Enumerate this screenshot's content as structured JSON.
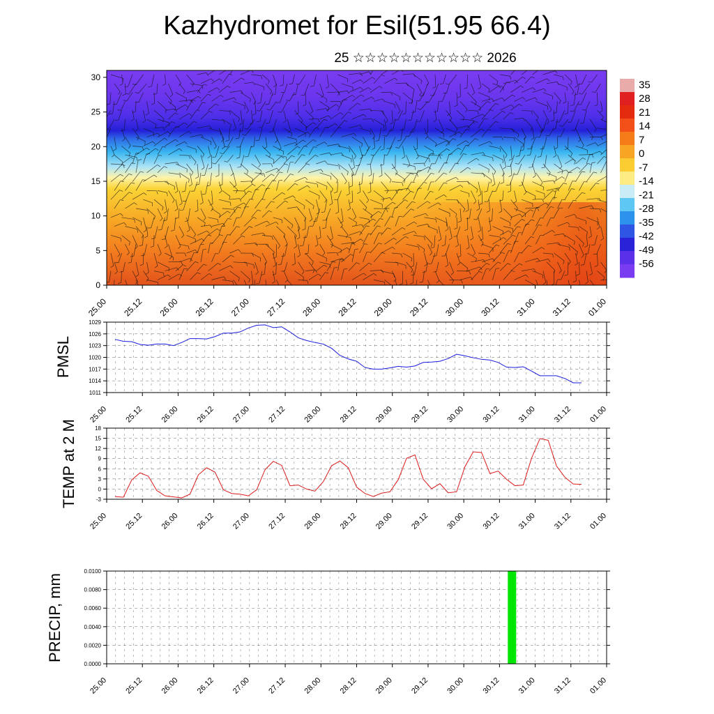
{
  "title": "Kazhydromet for Esil(51.95 66.4)",
  "subtitle": "25 ☆☆☆☆☆☆☆☆☆☆☆ 2026",
  "time_labels": [
    "25.00",
    "25.12",
    "26.00",
    "26.12",
    "27.00",
    "27.12",
    "28.00",
    "28.12",
    "29.00",
    "29.12",
    "30.00",
    "30.12",
    "31.00",
    "31.12",
    "01.00"
  ],
  "colors": {
    "pmsl_line": "#1a1adc",
    "temp_line": "#dc1a1a",
    "precip_bar": "#00e600"
  },
  "chart_data": [
    {
      "type": "heatmap",
      "name": "cross-section",
      "x_labels": [
        "25.00",
        "25.12",
        "26.00",
        "26.12",
        "27.00",
        "27.12",
        "28.00",
        "28.12",
        "29.00",
        "29.12",
        "30.00",
        "30.12",
        "31.00",
        "31.12",
        "01.00"
      ],
      "yticks": [
        0,
        5,
        10,
        15,
        20,
        25,
        30
      ],
      "ylim": [
        0,
        31
      ],
      "colorbar_ticks": [
        "35",
        "28",
        "21",
        "14",
        "7",
        "0",
        "-7",
        "-14",
        "-21",
        "-28",
        "-35",
        "-42",
        "-49",
        "-56"
      ],
      "colorbar_range": [
        -63,
        38
      ],
      "overlay": "wind barbs"
    },
    {
      "type": "line",
      "name": "pmsl",
      "ylabel": "PMSL",
      "ylim": [
        1011,
        1029
      ],
      "yticks": [
        "1011",
        "1014",
        "1017",
        "1020",
        "1023",
        "1026",
        "1029"
      ],
      "x_labels": [
        "25.00",
        "25.12",
        "26.00",
        "26.12",
        "27.00",
        "27.12",
        "28.00",
        "28.12",
        "29.00",
        "29.12",
        "30.00",
        "30.12",
        "31.00",
        "31.12",
        "01.00"
      ],
      "values": [
        1024.6,
        1024.1,
        1024.0,
        1023.3,
        1023.1,
        1023.4,
        1023.4,
        1023.0,
        1023.8,
        1024.8,
        1024.8,
        1024.7,
        1025.3,
        1026.2,
        1026.2,
        1026.5,
        1027.5,
        1028.2,
        1028.3,
        1027.6,
        1027.8,
        1026.5,
        1025.0,
        1024.3,
        1023.8,
        1023.4,
        1022.3,
        1020.5,
        1019.6,
        1019.0,
        1017.4,
        1017.0,
        1017.0,
        1017.3,
        1017.7,
        1017.5,
        1017.8,
        1018.7,
        1018.8,
        1019.0,
        1019.7,
        1020.8,
        1020.4,
        1019.9,
        1019.5,
        1019.3,
        1018.7,
        1017.5,
        1017.4,
        1017.6,
        1016.5,
        1015.3,
        1015.3,
        1015.3,
        1014.6,
        1013.5,
        1013.5
      ]
    },
    {
      "type": "line",
      "name": "temp",
      "ylabel": "TEMP at 2 M",
      "ylim": [
        -3,
        18
      ],
      "yticks": [
        "-3",
        "0",
        "3",
        "6",
        "9",
        "12",
        "15",
        "18"
      ],
      "x_labels": [
        "25.00",
        "25.12",
        "26.00",
        "26.12",
        "27.00",
        "27.12",
        "28.00",
        "28.12",
        "29.00",
        "29.12",
        "30.00",
        "30.12",
        "31.00",
        "31.12",
        "01.00"
      ],
      "values": [
        -2.2,
        -2.4,
        2.7,
        4.8,
        3.8,
        -0.4,
        -2.0,
        -2.3,
        -2.6,
        -1.5,
        4.2,
        6.3,
        5.0,
        -0.2,
        -1.3,
        -1.5,
        -2.0,
        -0.2,
        5.7,
        8.2,
        7.0,
        1.0,
        1.2,
        0.0,
        -0.6,
        2.2,
        6.9,
        8.3,
        6.3,
        0.6,
        -1.3,
        -2.2,
        -1.2,
        -0.8,
        2.8,
        9.1,
        10.1,
        2.9,
        0.1,
        1.6,
        -1.1,
        -0.8,
        6.6,
        11.0,
        10.8,
        4.6,
        5.3,
        2.9,
        1.0,
        1.2,
        9.1,
        14.9,
        14.4,
        6.8,
        3.5,
        1.5,
        1.4
      ]
    },
    {
      "type": "bar",
      "name": "precip",
      "ylabel": "PRECIP, mm",
      "ylim": [
        0,
        0.01
      ],
      "yticks": [
        "0.0000",
        "0.0020",
        "0.0040",
        "0.0060",
        "0.0080",
        "0.0100"
      ],
      "x_labels": [
        "25.00",
        "25.12",
        "26.00",
        "26.12",
        "27.00",
        "27.12",
        "28.00",
        "28.12",
        "29.00",
        "29.12",
        "30.00",
        "30.12",
        "31.00",
        "31.12",
        "01.00"
      ],
      "bars": [
        {
          "time_index": 11.35,
          "value": 0.01
        }
      ]
    }
  ]
}
